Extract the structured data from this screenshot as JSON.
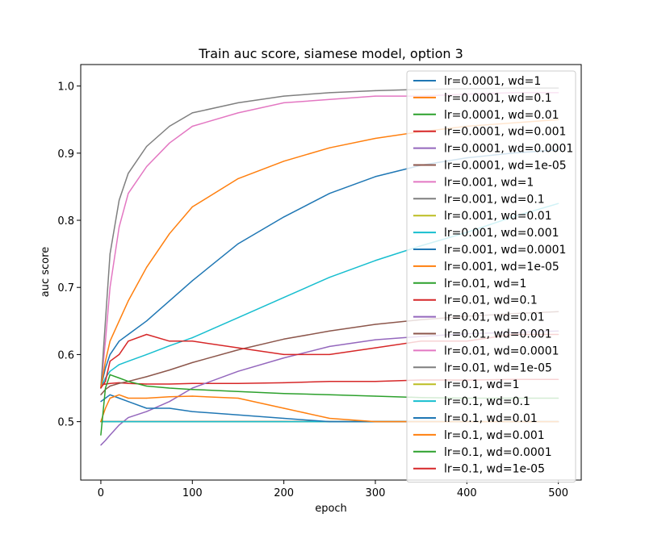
{
  "chart_data": {
    "type": "line",
    "title": "Train auc score, siamese model, option 3",
    "xlabel": "epoch",
    "ylabel": "auc score",
    "xlim": [
      -22,
      525
    ],
    "ylim": [
      0.413,
      1.032
    ],
    "xticks": [
      0,
      100,
      200,
      300,
      400,
      500
    ],
    "yticks": [
      0.5,
      0.6,
      0.7,
      0.8,
      0.9,
      1.0
    ],
    "xtick_labels": [
      "0",
      "100",
      "200",
      "300",
      "400",
      "500"
    ],
    "ytick_labels": [
      "0.5",
      "0.6",
      "0.7",
      "0.8",
      "0.9",
      "1.0"
    ],
    "grid": false,
    "legend_position": "upper right",
    "x_points": [
      0,
      5,
      10,
      20,
      30,
      50,
      75,
      100,
      150,
      200,
      250,
      300,
      350,
      400,
      450,
      500
    ],
    "series": [
      {
        "name": "lr=0.0001, wd=1",
        "color": "#1f77b4",
        "values": [
          0.5,
          0.5,
          0.5,
          0.5,
          0.5,
          0.5,
          0.5,
          0.5,
          0.5,
          0.5,
          0.5,
          0.5,
          0.5,
          0.5,
          0.5,
          0.5
        ]
      },
      {
        "name": "lr=0.0001, wd=0.1",
        "color": "#ff7f0e",
        "values": [
          0.5,
          0.5,
          0.5,
          0.5,
          0.5,
          0.5,
          0.5,
          0.5,
          0.5,
          0.5,
          0.5,
          0.5,
          0.5,
          0.5,
          0.5,
          0.5
        ]
      },
      {
        "name": "lr=0.0001, wd=0.01",
        "color": "#2ca02c",
        "values": [
          0.5,
          0.5,
          0.5,
          0.5,
          0.5,
          0.5,
          0.5,
          0.5,
          0.5,
          0.5,
          0.5,
          0.5,
          0.5,
          0.5,
          0.5,
          0.5
        ]
      },
      {
        "name": "lr=0.0001, wd=0.001",
        "color": "#d62728",
        "values": [
          0.555,
          0.556,
          0.557,
          0.558,
          0.557,
          0.556,
          0.556,
          0.557,
          0.557,
          0.558,
          0.56,
          0.56,
          0.562,
          0.562,
          0.563,
          0.563
        ]
      },
      {
        "name": "lr=0.0001, wd=0.0001",
        "color": "#9467bd",
        "values": [
          0.465,
          0.472,
          0.48,
          0.495,
          0.506,
          0.515,
          0.53,
          0.55,
          0.575,
          0.595,
          0.612,
          0.622,
          0.627,
          0.631,
          0.633,
          0.635
        ]
      },
      {
        "name": "lr=0.0001, wd=1e-05",
        "color": "#8c564b",
        "values": [
          0.54,
          0.548,
          0.553,
          0.557,
          0.56,
          0.567,
          0.577,
          0.588,
          0.607,
          0.623,
          0.635,
          0.645,
          0.652,
          0.657,
          0.661,
          0.664
        ]
      },
      {
        "name": "lr=0.001, wd=1",
        "color": "#e377c2",
        "values": [
          0.55,
          0.62,
          0.7,
          0.79,
          0.84,
          0.88,
          0.915,
          0.94,
          0.96,
          0.975,
          0.98,
          0.985,
          0.985,
          0.988,
          0.99,
          0.99
        ]
      },
      {
        "name": "lr=0.001, wd=0.1",
        "color": "#7f7f7f",
        "values": [
          0.55,
          0.65,
          0.75,
          0.83,
          0.87,
          0.91,
          0.94,
          0.96,
          0.975,
          0.985,
          0.99,
          0.993,
          0.995,
          0.996,
          0.997,
          0.997
        ]
      },
      {
        "name": "lr=0.001, wd=0.01",
        "color": "#bcbd22",
        "values": [
          0.5,
          0.5,
          0.5,
          0.5,
          0.5,
          0.5,
          0.5,
          0.5,
          0.5,
          0.5,
          0.5,
          0.5,
          0.5,
          0.5,
          0.5,
          0.5
        ]
      },
      {
        "name": "lr=0.001, wd=0.001",
        "color": "#17becf",
        "values": [
          0.55,
          0.565,
          0.575,
          0.585,
          0.59,
          0.6,
          0.613,
          0.625,
          0.655,
          0.685,
          0.715,
          0.74,
          0.762,
          0.782,
          0.805,
          0.825
        ]
      },
      {
        "name": "lr=0.001, wd=0.0001",
        "color": "#1f77b4",
        "values": [
          0.55,
          0.58,
          0.6,
          0.62,
          0.63,
          0.65,
          0.68,
          0.71,
          0.765,
          0.805,
          0.84,
          0.865,
          0.882,
          0.893,
          0.9,
          0.905
        ]
      },
      {
        "name": "lr=0.001, wd=1e-05",
        "color": "#ff7f0e",
        "values": [
          0.55,
          0.59,
          0.62,
          0.65,
          0.68,
          0.73,
          0.78,
          0.82,
          0.862,
          0.888,
          0.908,
          0.922,
          0.932,
          0.94,
          0.945,
          0.95
        ]
      },
      {
        "name": "lr=0.01, wd=1",
        "color": "#2ca02c",
        "values": [
          0.5,
          0.5,
          0.5,
          0.5,
          0.5,
          0.5,
          0.5,
          0.5,
          0.5,
          0.5,
          0.5,
          0.5,
          0.5,
          0.5,
          0.5,
          0.5
        ]
      },
      {
        "name": "lr=0.01, wd=0.1",
        "color": "#d62728",
        "values": [
          0.5,
          0.5,
          0.5,
          0.5,
          0.5,
          0.5,
          0.5,
          0.5,
          0.5,
          0.5,
          0.5,
          0.5,
          0.5,
          0.5,
          0.5,
          0.5
        ]
      },
      {
        "name": "lr=0.01, wd=0.01",
        "color": "#9467bd",
        "values": [
          0.5,
          0.5,
          0.5,
          0.5,
          0.5,
          0.5,
          0.5,
          0.5,
          0.5,
          0.5,
          0.5,
          0.5,
          0.5,
          0.5,
          0.5,
          0.5
        ]
      },
      {
        "name": "lr=0.01, wd=0.001",
        "color": "#8c564b",
        "values": [
          0.5,
          0.5,
          0.5,
          0.5,
          0.5,
          0.5,
          0.5,
          0.5,
          0.5,
          0.5,
          0.5,
          0.5,
          0.5,
          0.5,
          0.5,
          0.5
        ]
      },
      {
        "name": "lr=0.01, wd=0.0001",
        "color": "#e377c2",
        "values": [
          0.5,
          0.5,
          0.5,
          0.5,
          0.5,
          0.5,
          0.5,
          0.5,
          0.5,
          0.5,
          0.5,
          0.5,
          0.5,
          0.5,
          0.5,
          0.5
        ]
      },
      {
        "name": "lr=0.01, wd=1e-05",
        "color": "#7f7f7f",
        "values": [
          0.5,
          0.5,
          0.5,
          0.5,
          0.5,
          0.5,
          0.5,
          0.5,
          0.5,
          0.5,
          0.5,
          0.5,
          0.5,
          0.5,
          0.5,
          0.5
        ]
      },
      {
        "name": "lr=0.1, wd=1",
        "color": "#bcbd22",
        "values": [
          0.5,
          0.5,
          0.5,
          0.5,
          0.5,
          0.5,
          0.5,
          0.5,
          0.5,
          0.5,
          0.5,
          0.5,
          0.5,
          0.5,
          0.5,
          0.5
        ]
      },
      {
        "name": "lr=0.1, wd=0.1",
        "color": "#17becf",
        "values": [
          0.5,
          0.5,
          0.5,
          0.5,
          0.5,
          0.5,
          0.5,
          0.5,
          0.5,
          0.5,
          0.5,
          0.5,
          0.5,
          0.5,
          0.5,
          0.5
        ]
      },
      {
        "name": "lr=0.1, wd=0.01",
        "color": "#1f77b4",
        "values": [
          0.53,
          0.535,
          0.54,
          0.535,
          0.53,
          0.52,
          0.52,
          0.515,
          0.51,
          0.505,
          0.5,
          0.5,
          0.5,
          0.5,
          0.5,
          0.5
        ]
      },
      {
        "name": "lr=0.1, wd=0.001",
        "color": "#ff7f0e",
        "values": [
          0.5,
          0.52,
          0.535,
          0.54,
          0.535,
          0.535,
          0.537,
          0.538,
          0.535,
          0.52,
          0.505,
          0.5,
          0.5,
          0.5,
          0.5,
          0.5
        ]
      },
      {
        "name": "lr=0.1, wd=0.0001",
        "color": "#2ca02c",
        "values": [
          0.48,
          0.55,
          0.57,
          0.565,
          0.56,
          0.553,
          0.55,
          0.548,
          0.545,
          0.542,
          0.54,
          0.538,
          0.536,
          0.535,
          0.535,
          0.535
        ]
      },
      {
        "name": "lr=0.1, wd=1e-05",
        "color": "#d62728",
        "values": [
          0.55,
          0.56,
          0.59,
          0.6,
          0.62,
          0.63,
          0.62,
          0.62,
          0.61,
          0.6,
          0.6,
          0.61,
          0.62,
          0.62,
          0.63,
          0.63
        ]
      }
    ]
  }
}
